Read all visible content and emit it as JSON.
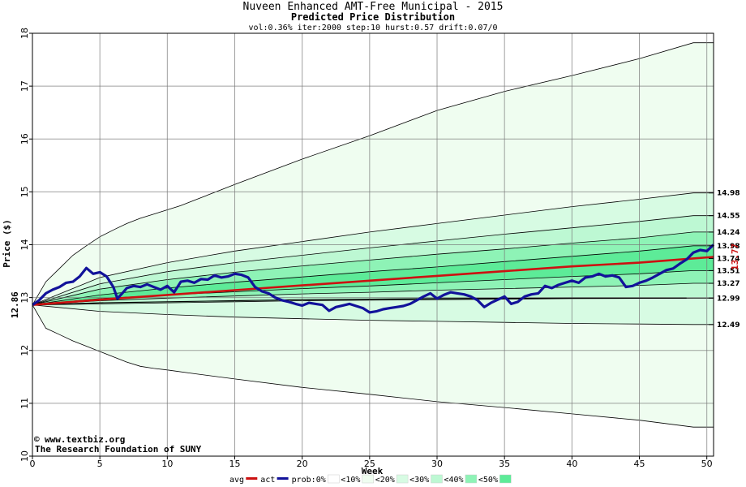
{
  "chart_data": {
    "type": "line",
    "title": "Nuveen Enhanced AMT-Free Municipal  - 2015",
    "subtitle": "Predicted Price Distribution",
    "params": "vol:0.36% iter:2000 step:10 hurst:0.57 drift:0.07/0",
    "xlabel": "Week",
    "ylabel": "Price ($)",
    "xlim": [
      0,
      50.5
    ],
    "ylim": [
      10,
      18
    ],
    "x_ticks": [
      0,
      5,
      10,
      15,
      20,
      25,
      30,
      35,
      40,
      45,
      50
    ],
    "y_ticks": [
      10,
      11,
      12,
      13,
      14,
      15,
      16,
      17,
      18
    ],
    "grid": true,
    "start_price_label": "12.86",
    "start_price": 12.86,
    "current_price_label": "13.77",
    "current_price": 13.77,
    "right_labels": [
      {
        "label": "14.98",
        "value": 14.98
      },
      {
        "label": "14.55",
        "value": 14.55
      },
      {
        "label": "14.24",
        "value": 14.24
      },
      {
        "label": "13.98",
        "value": 13.98
      },
      {
        "label": "13.74",
        "value": 13.74
      },
      {
        "label": "13.51",
        "value": 13.51
      },
      {
        "label": "13.27",
        "value": 13.27
      },
      {
        "label": "12.99",
        "value": 12.99
      },
      {
        "label": "12.49",
        "value": 12.49
      }
    ],
    "bands": [
      {
        "name": "<10%",
        "color": "#effdf0",
        "upper": [
          [
            0,
            12.86
          ],
          [
            1,
            13.3
          ],
          [
            2,
            13.55
          ],
          [
            3,
            13.8
          ],
          [
            4,
            13.98
          ],
          [
            5,
            14.15
          ],
          [
            6,
            14.28
          ],
          [
            7,
            14.4
          ],
          [
            8,
            14.5
          ],
          [
            9,
            14.58
          ],
          [
            10,
            14.66
          ],
          [
            11,
            14.74
          ],
          [
            12,
            14.84
          ],
          [
            13,
            14.94
          ],
          [
            14,
            15.04
          ],
          [
            15,
            15.14
          ],
          [
            20,
            15.62
          ],
          [
            25,
            16.06
          ],
          [
            30,
            16.54
          ],
          [
            35,
            16.9
          ],
          [
            40,
            17.2
          ],
          [
            45,
            17.52
          ],
          [
            49,
            17.82
          ],
          [
            50.5,
            17.82
          ]
        ],
        "lower": [
          [
            0,
            12.86
          ],
          [
            1,
            12.42
          ],
          [
            2,
            12.3
          ],
          [
            3,
            12.18
          ],
          [
            4,
            12.08
          ],
          [
            5,
            11.98
          ],
          [
            6,
            11.88
          ],
          [
            7,
            11.78
          ],
          [
            8,
            11.7
          ],
          [
            9,
            11.66
          ],
          [
            10,
            11.63
          ],
          [
            12,
            11.56
          ],
          [
            15,
            11.46
          ],
          [
            20,
            11.3
          ],
          [
            25,
            11.17
          ],
          [
            30,
            11.03
          ],
          [
            35,
            10.92
          ],
          [
            40,
            10.8
          ],
          [
            45,
            10.68
          ],
          [
            49,
            10.55
          ],
          [
            50.5,
            10.55
          ]
        ]
      },
      {
        "name": "<20%",
        "color": "#d7fbe3",
        "upper": [
          [
            0,
            12.86
          ],
          [
            5,
            13.38
          ],
          [
            10,
            13.66
          ],
          [
            15,
            13.88
          ],
          [
            20,
            14.06
          ],
          [
            25,
            14.24
          ],
          [
            30,
            14.4
          ],
          [
            35,
            14.56
          ],
          [
            40,
            14.72
          ],
          [
            45,
            14.86
          ],
          [
            49,
            14.98
          ],
          [
            50.5,
            14.98
          ]
        ],
        "lower": [
          [
            0,
            12.86
          ],
          [
            5,
            12.74
          ],
          [
            10,
            12.68
          ],
          [
            15,
            12.63
          ],
          [
            20,
            12.6
          ],
          [
            25,
            12.57
          ],
          [
            30,
            12.55
          ],
          [
            35,
            12.53
          ],
          [
            40,
            12.51
          ],
          [
            45,
            12.5
          ],
          [
            49,
            12.49
          ],
          [
            50.5,
            12.49
          ]
        ]
      },
      {
        "name": "<30%",
        "color": "#bdf8d3",
        "upper": [
          [
            0,
            12.86
          ],
          [
            5,
            13.26
          ],
          [
            10,
            13.49
          ],
          [
            15,
            13.66
          ],
          [
            20,
            13.8
          ],
          [
            25,
            13.94
          ],
          [
            30,
            14.07
          ],
          [
            35,
            14.2
          ],
          [
            40,
            14.32
          ],
          [
            45,
            14.44
          ],
          [
            49,
            14.55
          ],
          [
            50.5,
            14.55
          ]
        ],
        "lower": [
          [
            0,
            12.86
          ],
          [
            5,
            12.88
          ],
          [
            10,
            12.9
          ],
          [
            15,
            12.92
          ],
          [
            20,
            12.94
          ],
          [
            25,
            12.95
          ],
          [
            30,
            12.96
          ],
          [
            35,
            12.97
          ],
          [
            40,
            12.98
          ],
          [
            45,
            12.985
          ],
          [
            49,
            12.99
          ],
          [
            50.5,
            12.99
          ]
        ]
      },
      {
        "name": "<40%",
        "color": "#8ef3b6",
        "upper": [
          [
            0,
            12.86
          ],
          [
            5,
            13.16
          ],
          [
            10,
            13.34
          ],
          [
            15,
            13.48
          ],
          [
            20,
            13.6
          ],
          [
            25,
            13.71
          ],
          [
            30,
            13.82
          ],
          [
            35,
            13.92
          ],
          [
            40,
            14.03
          ],
          [
            45,
            14.13
          ],
          [
            49,
            14.24
          ],
          [
            50.5,
            14.24
          ]
        ],
        "lower": [
          [
            0,
            12.86
          ],
          [
            5,
            12.94
          ],
          [
            10,
            12.99
          ],
          [
            15,
            13.03
          ],
          [
            20,
            13.07
          ],
          [
            25,
            13.1
          ],
          [
            30,
            13.14
          ],
          [
            35,
            13.17
          ],
          [
            40,
            13.2
          ],
          [
            45,
            13.23
          ],
          [
            49,
            13.27
          ],
          [
            50.5,
            13.27
          ]
        ]
      },
      {
        "name": "<50%",
        "color": "#5deb98",
        "upper": [
          [
            0,
            12.86
          ],
          [
            5,
            13.05
          ],
          [
            10,
            13.18
          ],
          [
            15,
            13.29
          ],
          [
            20,
            13.39
          ],
          [
            25,
            13.49
          ],
          [
            30,
            13.58
          ],
          [
            35,
            13.68
          ],
          [
            40,
            13.78
          ],
          [
            45,
            13.88
          ],
          [
            49,
            13.98
          ],
          [
            50.5,
            13.98
          ]
        ],
        "lower": [
          [
            0,
            12.86
          ],
          [
            5,
            12.98
          ],
          [
            10,
            13.05
          ],
          [
            15,
            13.11
          ],
          [
            20,
            13.17
          ],
          [
            25,
            13.22
          ],
          [
            30,
            13.28
          ],
          [
            35,
            13.34
          ],
          [
            40,
            13.4
          ],
          [
            45,
            13.45
          ],
          [
            49,
            13.51
          ],
          [
            50.5,
            13.51
          ]
        ]
      }
    ],
    "reference_line": {
      "name": "prob:0%",
      "points": [
        [
          0,
          12.86
        ],
        [
          5,
          12.9
        ],
        [
          10,
          12.92
        ],
        [
          15,
          12.94
        ],
        [
          20,
          12.96
        ],
        [
          25,
          12.97
        ],
        [
          30,
          12.98
        ],
        [
          35,
          12.985
        ],
        [
          40,
          12.99
        ],
        [
          45,
          12.99
        ],
        [
          48.5,
          12.99
        ]
      ]
    },
    "series": [
      {
        "name": "avg",
        "color": "#cc1111",
        "points": [
          [
            0,
            12.86
          ],
          [
            5,
            12.96
          ],
          [
            10,
            13.05
          ],
          [
            15,
            13.14
          ],
          [
            20,
            13.23
          ],
          [
            25,
            13.32
          ],
          [
            30,
            13.41
          ],
          [
            35,
            13.5
          ],
          [
            40,
            13.59
          ],
          [
            45,
            13.66
          ],
          [
            49,
            13.74
          ],
          [
            50.5,
            13.77
          ]
        ]
      },
      {
        "name": "act",
        "color": "#12129a",
        "points": [
          [
            0,
            12.86
          ],
          [
            0.5,
            12.95
          ],
          [
            1,
            13.08
          ],
          [
            1.5,
            13.15
          ],
          [
            2,
            13.2
          ],
          [
            2.5,
            13.28
          ],
          [
            3,
            13.3
          ],
          [
            3.5,
            13.4
          ],
          [
            4,
            13.56
          ],
          [
            4.5,
            13.45
          ],
          [
            5,
            13.48
          ],
          [
            5.5,
            13.4
          ],
          [
            6,
            13.2
          ],
          [
            6.3,
            12.98
          ],
          [
            6.8,
            13.12
          ],
          [
            7,
            13.18
          ],
          [
            7.5,
            13.22
          ],
          [
            8,
            13.2
          ],
          [
            8.5,
            13.25
          ],
          [
            9,
            13.2
          ],
          [
            9.5,
            13.15
          ],
          [
            10,
            13.22
          ],
          [
            10.5,
            13.1
          ],
          [
            11,
            13.3
          ],
          [
            11.5,
            13.32
          ],
          [
            12,
            13.28
          ],
          [
            12.5,
            13.35
          ],
          [
            13,
            13.34
          ],
          [
            13.5,
            13.42
          ],
          [
            14,
            13.38
          ],
          [
            14.5,
            13.4
          ],
          [
            15,
            13.45
          ],
          [
            15.5,
            13.43
          ],
          [
            16,
            13.38
          ],
          [
            16.5,
            13.2
          ],
          [
            17,
            13.12
          ],
          [
            17.5,
            13.08
          ],
          [
            18,
            13.0
          ],
          [
            18.5,
            12.95
          ],
          [
            19,
            12.92
          ],
          [
            19.5,
            12.88
          ],
          [
            20,
            12.85
          ],
          [
            20.5,
            12.9
          ],
          [
            21,
            12.88
          ],
          [
            21.5,
            12.86
          ],
          [
            22,
            12.75
          ],
          [
            22.5,
            12.82
          ],
          [
            23,
            12.85
          ],
          [
            23.5,
            12.88
          ],
          [
            24,
            12.84
          ],
          [
            24.5,
            12.8
          ],
          [
            25,
            12.72
          ],
          [
            25.5,
            12.74
          ],
          [
            26,
            12.78
          ],
          [
            26.5,
            12.8
          ],
          [
            27,
            12.82
          ],
          [
            27.5,
            12.84
          ],
          [
            28,
            12.88
          ],
          [
            28.5,
            12.95
          ],
          [
            29,
            13.02
          ],
          [
            29.5,
            13.08
          ],
          [
            30,
            12.98
          ],
          [
            30.5,
            13.05
          ],
          [
            31,
            13.1
          ],
          [
            31.5,
            13.08
          ],
          [
            32,
            13.06
          ],
          [
            32.5,
            13.02
          ],
          [
            33,
            12.95
          ],
          [
            33.5,
            12.82
          ],
          [
            34,
            12.9
          ],
          [
            34.5,
            12.96
          ],
          [
            35,
            13.02
          ],
          [
            35.5,
            12.88
          ],
          [
            36,
            12.92
          ],
          [
            36.5,
            13.02
          ],
          [
            37,
            13.06
          ],
          [
            37.5,
            13.08
          ],
          [
            38,
            13.22
          ],
          [
            38.5,
            13.18
          ],
          [
            39,
            13.24
          ],
          [
            39.5,
            13.28
          ],
          [
            40,
            13.32
          ],
          [
            40.5,
            13.28
          ],
          [
            41,
            13.38
          ],
          [
            41.5,
            13.4
          ],
          [
            42,
            13.45
          ],
          [
            42.5,
            13.4
          ],
          [
            43,
            13.42
          ],
          [
            43.5,
            13.38
          ],
          [
            44,
            13.2
          ],
          [
            44.5,
            13.22
          ],
          [
            45,
            13.28
          ],
          [
            45.5,
            13.32
          ],
          [
            46,
            13.38
          ],
          [
            46.5,
            13.45
          ],
          [
            47,
            13.52
          ],
          [
            47.5,
            13.55
          ],
          [
            48,
            13.64
          ],
          [
            48.5,
            13.72
          ],
          [
            49,
            13.85
          ],
          [
            49.5,
            13.9
          ],
          [
            50,
            13.88
          ],
          [
            50.5,
            14.0
          ]
        ]
      }
    ],
    "legend": {
      "position": "bottom",
      "items": [
        {
          "label": "avg",
          "kind": "line",
          "color": "#cc1111"
        },
        {
          "label": "act",
          "kind": "line",
          "color": "#12129a"
        },
        {
          "label": "prob:0%",
          "kind": "swatch",
          "color": "#ffffff"
        },
        {
          "label": "<10%",
          "kind": "swatch",
          "color": "#effdf0"
        },
        {
          "label": "<20%",
          "kind": "swatch",
          "color": "#d7fbe3"
        },
        {
          "label": "<30%",
          "kind": "swatch",
          "color": "#bdf8d3"
        },
        {
          "label": "<40%",
          "kind": "swatch",
          "color": "#8ef3b6"
        },
        {
          "label": "<50%",
          "kind": "swatch",
          "color": "#5deb98"
        }
      ]
    },
    "credit_url": "www.textbiz.org",
    "credit_org": "The Research Foundation of SUNY",
    "copyright_symbol": "©"
  }
}
